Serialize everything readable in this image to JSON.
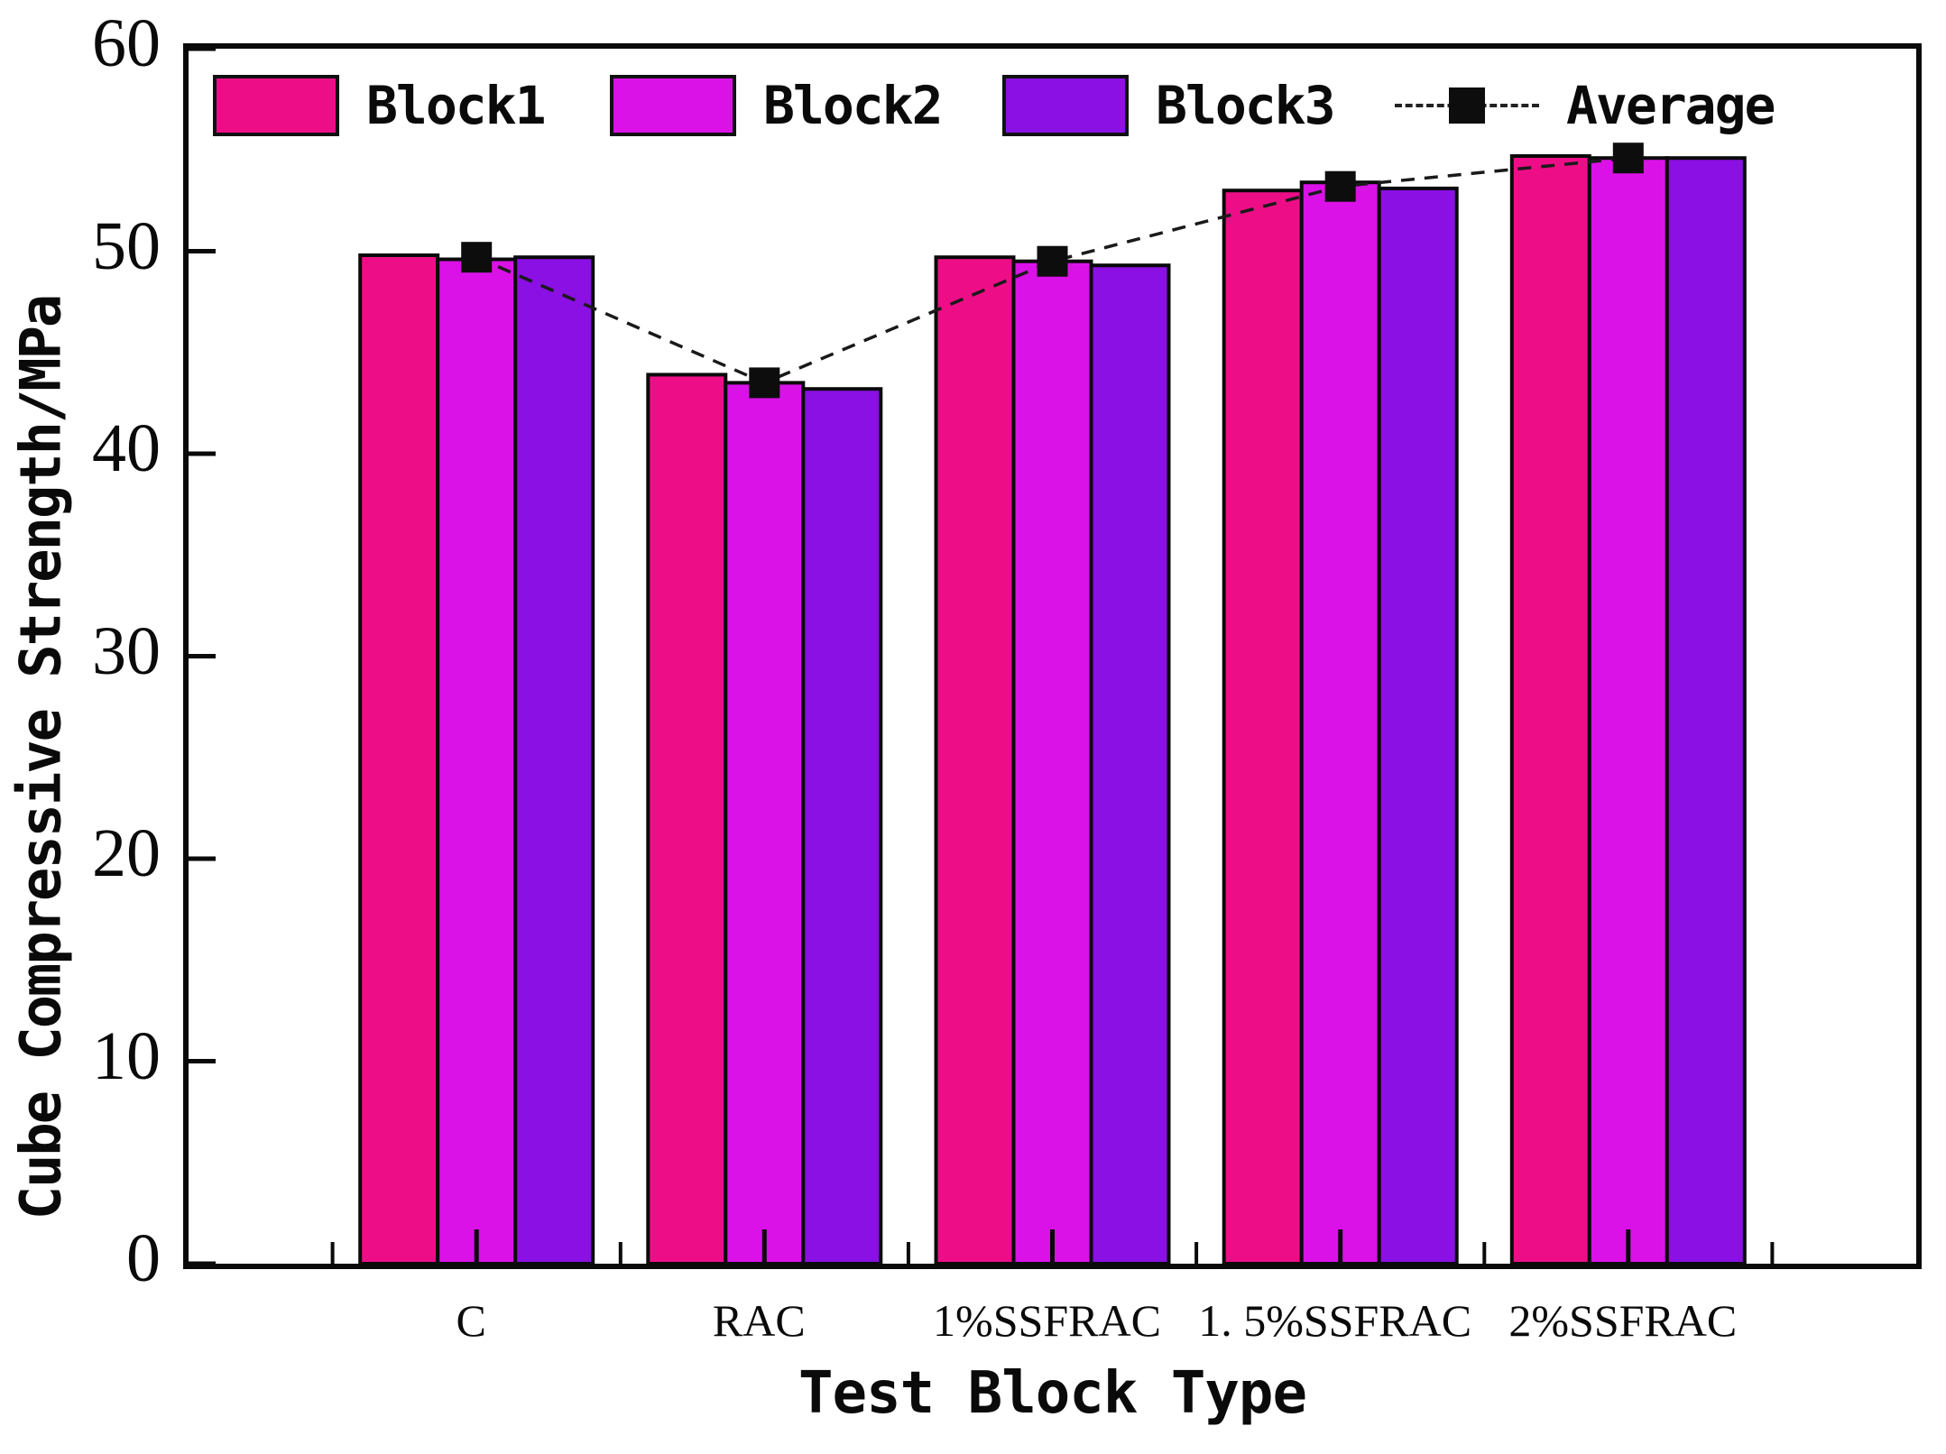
{
  "figure": {
    "background": "#ffffff",
    "frame_color": "#0a0a0a"
  },
  "chart_data": {
    "type": "bar",
    "title": "",
    "xlabel": "Test Block Type",
    "ylabel": "Cube Compressive Strength/MPa",
    "categories": [
      "C",
      "RAC",
      "1%SSFRAC",
      "1. 5%SSFRAC",
      "2%SSFRAC"
    ],
    "ylim": [
      0,
      60
    ],
    "y_ticks": [
      0,
      10,
      20,
      30,
      40,
      50,
      60
    ],
    "grid": false,
    "legend_position": "top-inside",
    "series": [
      {
        "name": "Block1",
        "color": "#ED0E87",
        "values": [
          49.8,
          43.9,
          49.7,
          53.0,
          54.7
        ]
      },
      {
        "name": "Block2",
        "color": "#DA12E8",
        "values": [
          49.6,
          43.5,
          49.5,
          53.4,
          54.6
        ]
      },
      {
        "name": "Block3",
        "color": "#8A10E3",
        "values": [
          49.7,
          43.2,
          49.3,
          53.1,
          54.6
        ]
      }
    ],
    "average_series": {
      "name": "Average",
      "line_style": "dashed",
      "marker": "filled-square",
      "color": "#0d0d0d",
      "values": [
        49.7,
        43.5,
        49.5,
        53.2,
        54.6
      ]
    }
  }
}
